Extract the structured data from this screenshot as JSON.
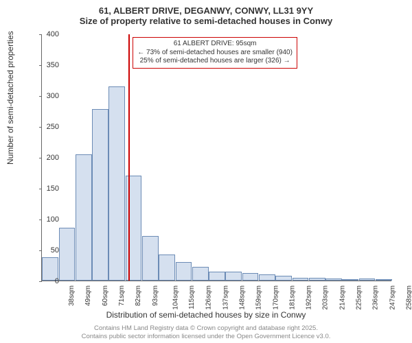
{
  "title_line1": "61, ALBERT DRIVE, DEGANWY, CONWY, LL31 9YY",
  "title_line2": "Size of property relative to semi-detached houses in Conwy",
  "ylabel": "Number of semi-detached properties",
  "xlabel": "Distribution of semi-detached houses by size in Conwy",
  "footer_line1": "Contains HM Land Registry data © Crown copyright and database right 2025.",
  "footer_line2": "Contains public sector information licensed under the Open Government Licence v3.0.",
  "info_line1": "61 ALBERT DRIVE: 95sqm",
  "info_line2": "← 73% of semi-detached houses are smaller (940)",
  "info_line3": "25% of semi-detached houses are larger (326) →",
  "chart": {
    "type": "bar",
    "ylim": [
      0,
      400
    ],
    "ytick_step": 50,
    "bar_fill": "#d5e0ef",
    "bar_stroke": "#6b8bb5",
    "marker_color": "#cc0000",
    "marker_category_index": 5,
    "background_color": "#ffffff",
    "axis_color": "#666666",
    "categories": [
      "38sqm",
      "49sqm",
      "60sqm",
      "71sqm",
      "82sqm",
      "93sqm",
      "104sqm",
      "115sqm",
      "126sqm",
      "137sqm",
      "148sqm",
      "159sqm",
      "170sqm",
      "181sqm",
      "192sqm",
      "203sqm",
      "214sqm",
      "225sqm",
      "236sqm",
      "247sqm",
      "258sqm"
    ],
    "values": [
      38,
      86,
      205,
      278,
      315,
      170,
      72,
      42,
      30,
      22,
      14,
      14,
      12,
      10,
      8,
      5,
      4,
      3,
      0,
      3,
      2
    ],
    "title_fontsize": 13,
    "label_fontsize": 12,
    "tick_fontsize": 11,
    "info_fontsize": 10,
    "footer_fontsize": 9.5,
    "footer_color": "#888888",
    "text_color": "#333333"
  }
}
